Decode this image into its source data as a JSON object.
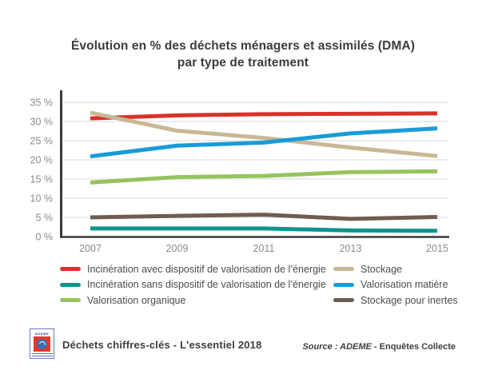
{
  "title": {
    "line1": "Évolution en % des déchets ménagers et assimilés (DMA)",
    "line2": "par type de traitement"
  },
  "chart_data": {
    "type": "line",
    "title": "Évolution en % des déchets ménagers et assimilés (DMA) par type de traitement",
    "categories": [
      "2007",
      "2009",
      "2011",
      "2013",
      "2015"
    ],
    "series": [
      {
        "name": "Incinération avec dispositif de valorisation de l’énergie",
        "color": "#d93228",
        "values": [
          30.8,
          31.6,
          31.9,
          32.0,
          32.1
        ]
      },
      {
        "name": "Incinération sans dispositif de valorisation de l’énergie",
        "color": "#0b948e",
        "values": [
          2.1,
          2.1,
          2.1,
          1.6,
          1.5
        ]
      },
      {
        "name": "Valorisation organique",
        "color": "#95c45e",
        "values": [
          14.1,
          15.5,
          15.8,
          16.8,
          17.0
        ]
      },
      {
        "name": "Stockage",
        "color": "#c9b795",
        "values": [
          32.3,
          27.6,
          25.7,
          23.2,
          21.0
        ]
      },
      {
        "name": "Valorisation matière",
        "color": "#189cd8",
        "values": [
          20.9,
          23.7,
          24.5,
          26.9,
          28.2
        ]
      },
      {
        "name": "Stockage pour inertes",
        "color": "#6e5d50",
        "values": [
          5.0,
          5.4,
          5.7,
          4.6,
          5.1
        ]
      }
    ],
    "xlabel": "",
    "ylabel": "",
    "ylim": [
      0,
      35
    ],
    "ytick_step": 5,
    "ytick_suffix": " %",
    "grid": true,
    "legend_position": "bottom",
    "draw_order": [
      0,
      3,
      4,
      2,
      5,
      1
    ],
    "legend_columns": {
      "left": [
        0,
        1,
        2
      ],
      "right": [
        3,
        4,
        5
      ]
    }
  },
  "footer": {
    "logo_text": "ADEME",
    "brand": "Déchets chiffres-clés - L'essentiel 2018",
    "source_italic": "Source : ADEME",
    "source_rest": " - Enquêtes Collecte"
  },
  "colors": {
    "axis": "#3a3a3a",
    "grid": "#ececec",
    "tick_label": "#8c8c8c",
    "title": "#3c3c3c",
    "legend_text": "#4b4b4b",
    "footer_text": "#3d3d3d"
  }
}
